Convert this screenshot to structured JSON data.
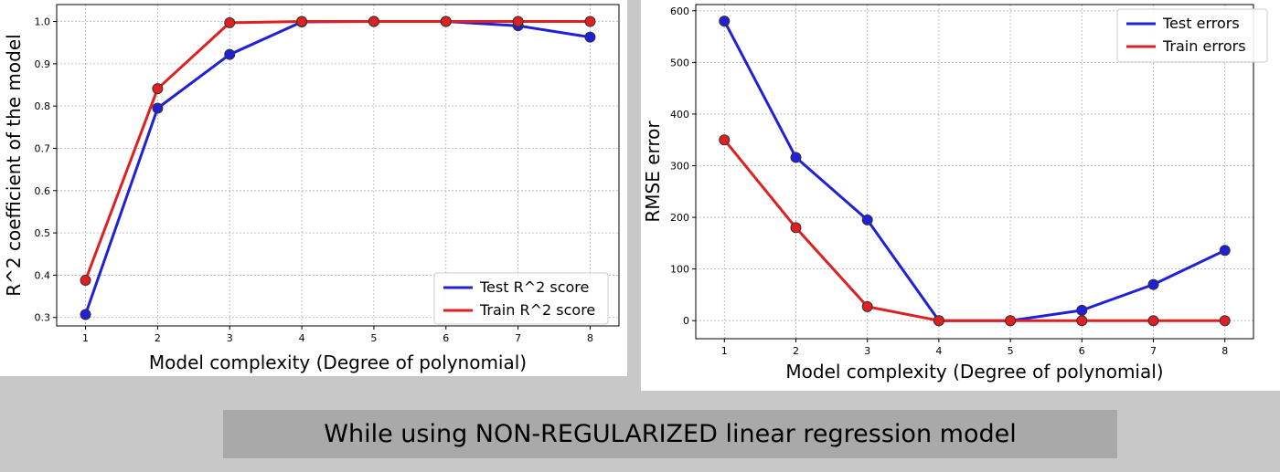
{
  "caption": "While using NON-REGULARIZED linear regression model",
  "chart_data": [
    {
      "type": "line",
      "xlabel": "Model complexity (Degree of polynomial)",
      "ylabel": "R^2 coefficient of the model",
      "x": [
        1,
        2,
        3,
        4,
        5,
        6,
        7,
        8
      ],
      "xlim": [
        0.6,
        8.4
      ],
      "ylim": [
        0.28,
        1.04
      ],
      "yticks": [
        0.3,
        0.4,
        0.5,
        0.6,
        0.7,
        0.8,
        0.9,
        1.0
      ],
      "ytick_labels": [
        "0.3",
        "0.4",
        "0.5",
        "0.6",
        "0.7",
        "0.8",
        "0.9",
        "1.0"
      ],
      "xtick_labels": [
        "1",
        "2",
        "3",
        "4",
        "5",
        "6",
        "7",
        "8"
      ],
      "grid": true,
      "legend_position": "lower-right",
      "series": [
        {
          "name": "Test R^2 score",
          "color": "#2020d8",
          "values": [
            0.307,
            0.795,
            0.922,
            0.999,
            1.0,
            1.0,
            0.99,
            0.963
          ]
        },
        {
          "name": "Train R^2 score",
          "color": "#e02020",
          "values": [
            0.388,
            0.841,
            0.997,
            1.0,
            1.0,
            1.0,
            1.0,
            1.0
          ]
        }
      ]
    },
    {
      "type": "line",
      "xlabel": "Model complexity (Degree of polynomial)",
      "ylabel": "RMSE error",
      "x": [
        1,
        2,
        3,
        4,
        5,
        6,
        7,
        8
      ],
      "xlim": [
        0.6,
        8.4
      ],
      "ylim": [
        -35,
        612
      ],
      "yticks": [
        0,
        100,
        200,
        300,
        400,
        500,
        600
      ],
      "ytick_labels": [
        "0",
        "100",
        "200",
        "300",
        "400",
        "500",
        "600"
      ],
      "xtick_labels": [
        "1",
        "2",
        "3",
        "4",
        "5",
        "6",
        "7",
        "8"
      ],
      "grid": true,
      "legend_position": "upper-right",
      "series": [
        {
          "name": "Test errors",
          "color": "#2020d8",
          "values": [
            580,
            316,
            195,
            0,
            0,
            20,
            70,
            136
          ]
        },
        {
          "name": "Train errors",
          "color": "#e02020",
          "values": [
            350,
            180,
            27,
            0,
            0,
            0,
            0,
            0
          ]
        }
      ]
    }
  ]
}
